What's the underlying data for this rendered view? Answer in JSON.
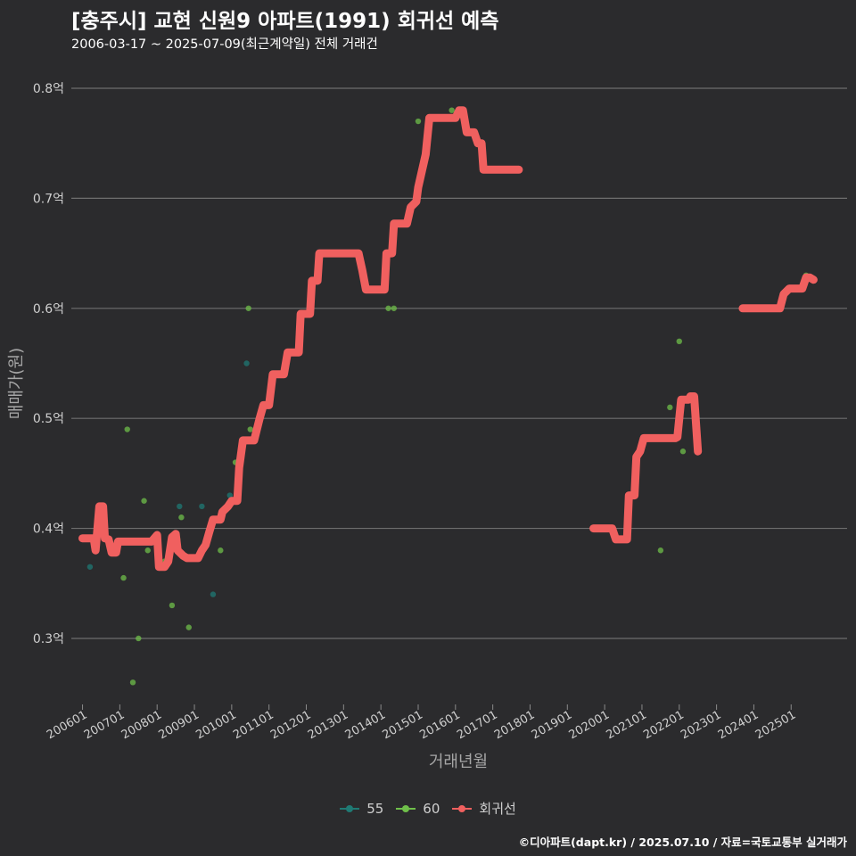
{
  "title": "[충주시] 교현 신원9 아파트(1991) 회귀선 예측",
  "subtitle": "2006-03-17 ~ 2025-07-09(최근계약일) 전체 거래건",
  "caption": "©디아파트(dapt.kr) / 2025.07.10 / 자료=국토교통부 실거래가",
  "colors": {
    "background": "#2b2b2d",
    "grid": "#6e6e6e",
    "s55": "#1f7a74",
    "s60": "#6fbf4a",
    "regression": "#f0605f"
  },
  "legend": [
    {
      "label": "55",
      "color": "#1f7a74"
    },
    {
      "label": "60",
      "color": "#6fbf4a"
    },
    {
      "label": "회귀선",
      "color": "#f0605f"
    }
  ],
  "chart_data": {
    "type": "scatter",
    "xlabel": "거래년월",
    "ylabel": "매매가(원)",
    "x_range": [
      2005.7,
      2026.5
    ],
    "ylim": [
      0.24,
      0.83
    ],
    "yticks": [
      {
        "v": 0.3,
        "label": "0.3억"
      },
      {
        "v": 0.4,
        "label": "0.4억"
      },
      {
        "v": 0.5,
        "label": "0.5억"
      },
      {
        "v": 0.6,
        "label": "0.6억"
      },
      {
        "v": 0.7,
        "label": "0.7억"
      },
      {
        "v": 0.8,
        "label": "0.8억"
      }
    ],
    "xticks": [
      {
        "v": 2006,
        "label": "200601"
      },
      {
        "v": 2007,
        "label": "200701"
      },
      {
        "v": 2008,
        "label": "200801"
      },
      {
        "v": 2009,
        "label": "200901"
      },
      {
        "v": 2010,
        "label": "201001"
      },
      {
        "v": 2011,
        "label": "201101"
      },
      {
        "v": 2012,
        "label": "201201"
      },
      {
        "v": 2013,
        "label": "201301"
      },
      {
        "v": 2014,
        "label": "201401"
      },
      {
        "v": 2015,
        "label": "201501"
      },
      {
        "v": 2016,
        "label": "201601"
      },
      {
        "v": 2017,
        "label": "201701"
      },
      {
        "v": 2018,
        "label": "201801"
      },
      {
        "v": 2019,
        "label": "201901"
      },
      {
        "v": 2020,
        "label": "202001"
      },
      {
        "v": 2021,
        "label": "202101"
      },
      {
        "v": 2022,
        "label": "202201"
      },
      {
        "v": 2023,
        "label": "202301"
      },
      {
        "v": 2024,
        "label": "202401"
      },
      {
        "v": 2025,
        "label": "202501"
      }
    ],
    "series": [
      {
        "name": "55",
        "points": [
          [
            2006.2,
            0.365
          ],
          [
            2008.6,
            0.42
          ],
          [
            2009.2,
            0.42
          ],
          [
            2009.5,
            0.34
          ],
          [
            2009.95,
            0.43
          ],
          [
            2010.4,
            0.55
          ]
        ]
      },
      {
        "name": "60",
        "points": [
          [
            2007.1,
            0.355
          ],
          [
            2007.2,
            0.49
          ],
          [
            2007.35,
            0.26
          ],
          [
            2007.5,
            0.3
          ],
          [
            2007.65,
            0.425
          ],
          [
            2007.75,
            0.38
          ],
          [
            2008.2,
            0.37
          ],
          [
            2008.4,
            0.33
          ],
          [
            2008.55,
            0.39
          ],
          [
            2008.65,
            0.41
          ],
          [
            2008.85,
            0.31
          ],
          [
            2009.7,
            0.38
          ],
          [
            2010.1,
            0.46
          ],
          [
            2010.45,
            0.6
          ],
          [
            2010.5,
            0.49
          ],
          [
            2014.2,
            0.6
          ],
          [
            2014.35,
            0.6
          ],
          [
            2015.0,
            0.77
          ],
          [
            2015.9,
            0.78
          ],
          [
            2016.1,
            0.78
          ],
          [
            2021.5,
            0.38
          ],
          [
            2021.75,
            0.51
          ],
          [
            2022.0,
            0.57
          ],
          [
            2022.1,
            0.47
          ],
          [
            2025.4,
            0.63
          ]
        ]
      }
    ],
    "regression": {
      "name": "회귀선",
      "segments": [
        [
          [
            2006.0,
            0.391
          ],
          [
            2006.3,
            0.391
          ],
          [
            2006.35,
            0.38
          ],
          [
            2006.45,
            0.42
          ],
          [
            2006.55,
            0.42
          ],
          [
            2006.6,
            0.391
          ],
          [
            2006.7,
            0.39
          ],
          [
            2006.78,
            0.378
          ],
          [
            2006.9,
            0.378
          ],
          [
            2006.95,
            0.388
          ],
          [
            2007.7,
            0.388
          ],
          [
            2007.85,
            0.388
          ],
          [
            2008.0,
            0.394
          ],
          [
            2008.05,
            0.365
          ],
          [
            2008.2,
            0.365
          ],
          [
            2008.3,
            0.37
          ],
          [
            2008.4,
            0.392
          ],
          [
            2008.5,
            0.395
          ],
          [
            2008.55,
            0.38
          ],
          [
            2008.7,
            0.375
          ],
          [
            2008.8,
            0.373
          ],
          [
            2009.1,
            0.373
          ],
          [
            2009.2,
            0.38
          ],
          [
            2009.3,
            0.385
          ],
          [
            2009.4,
            0.397
          ],
          [
            2009.5,
            0.408
          ],
          [
            2009.7,
            0.408
          ],
          [
            2009.75,
            0.415
          ],
          [
            2009.9,
            0.42
          ],
          [
            2010.0,
            0.425
          ],
          [
            2010.15,
            0.425
          ],
          [
            2010.2,
            0.455
          ],
          [
            2010.3,
            0.48
          ],
          [
            2010.6,
            0.48
          ],
          [
            2010.75,
            0.5
          ],
          [
            2010.85,
            0.512
          ],
          [
            2011.0,
            0.512
          ],
          [
            2011.1,
            0.54
          ],
          [
            2011.2,
            0.54
          ],
          [
            2011.4,
            0.54
          ],
          [
            2011.5,
            0.56
          ],
          [
            2011.8,
            0.56
          ],
          [
            2011.85,
            0.595
          ],
          [
            2012.1,
            0.595
          ],
          [
            2012.15,
            0.625
          ],
          [
            2012.3,
            0.625
          ],
          [
            2012.35,
            0.65
          ],
          [
            2013.4,
            0.65
          ],
          [
            2013.5,
            0.635
          ],
          [
            2013.6,
            0.617
          ],
          [
            2014.1,
            0.617
          ],
          [
            2014.15,
            0.65
          ],
          [
            2014.3,
            0.65
          ],
          [
            2014.35,
            0.677
          ],
          [
            2014.7,
            0.677
          ],
          [
            2014.8,
            0.692
          ],
          [
            2014.95,
            0.697
          ],
          [
            2015.0,
            0.71
          ],
          [
            2015.2,
            0.74
          ],
          [
            2015.3,
            0.773
          ],
          [
            2016.0,
            0.773
          ],
          [
            2016.1,
            0.78
          ],
          [
            2016.2,
            0.78
          ],
          [
            2016.3,
            0.76
          ],
          [
            2016.5,
            0.76
          ],
          [
            2016.6,
            0.75
          ],
          [
            2016.7,
            0.75
          ],
          [
            2016.75,
            0.726
          ],
          [
            2017.7,
            0.726
          ]
        ],
        [
          [
            2019.7,
            0.4
          ],
          [
            2020.1,
            0.4
          ],
          [
            2020.2,
            0.4
          ],
          [
            2020.3,
            0.39
          ],
          [
            2020.6,
            0.39
          ],
          [
            2020.65,
            0.43
          ],
          [
            2020.8,
            0.43
          ],
          [
            2020.85,
            0.465
          ],
          [
            2020.95,
            0.47
          ],
          [
            2021.05,
            0.482
          ],
          [
            2021.9,
            0.482
          ],
          [
            2021.95,
            0.483
          ],
          [
            2022.05,
            0.517
          ],
          [
            2022.25,
            0.517
          ],
          [
            2022.3,
            0.52
          ],
          [
            2022.4,
            0.52
          ],
          [
            2022.5,
            0.47
          ]
        ],
        [
          [
            2023.7,
            0.6
          ],
          [
            2024.7,
            0.6
          ],
          [
            2024.8,
            0.613
          ],
          [
            2024.95,
            0.618
          ],
          [
            2025.3,
            0.618
          ],
          [
            2025.4,
            0.628
          ],
          [
            2025.5,
            0.628
          ],
          [
            2025.6,
            0.626
          ]
        ]
      ]
    }
  }
}
